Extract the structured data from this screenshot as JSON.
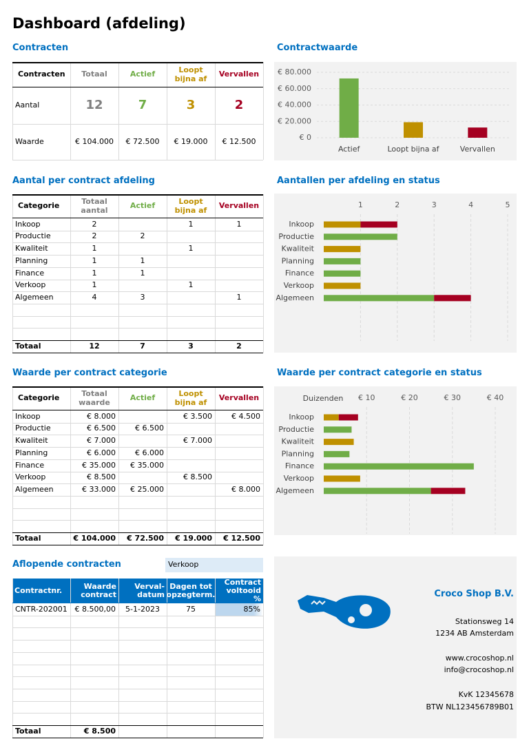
{
  "title": "Dashboard (afdeling)",
  "contracts": {
    "heading": "Contracten",
    "header": [
      "Contracten",
      "Totaal",
      "Actief",
      "Loopt bijna af",
      "Vervallen"
    ],
    "rows": [
      [
        "Aantal",
        "12",
        "7",
        "3",
        "2"
      ],
      [
        "Waarde",
        "€ 104.000",
        "€ 72.500",
        "€ 19.000",
        "€ 12.500"
      ]
    ]
  },
  "count_table": {
    "heading": "Aantal per contract afdeling",
    "header": [
      "Categorie",
      "Totaal aantal",
      "Actief",
      "Loopt bijna af",
      "Vervallen"
    ],
    "rows": [
      [
        "Inkoop",
        "2",
        null,
        "1",
        "1"
      ],
      [
        "Productie",
        "2",
        "2",
        null,
        null
      ],
      [
        "Kwaliteit",
        "1",
        null,
        "1",
        null
      ],
      [
        "Planning",
        "1",
        "1",
        null,
        null
      ],
      [
        "Finance",
        "1",
        "1",
        null,
        null
      ],
      [
        "Verkoop",
        "1",
        null,
        "1",
        null
      ],
      [
        "Algemeen",
        "4",
        "3",
        null,
        "1"
      ]
    ],
    "total": [
      "Totaal",
      "12",
      "7",
      "3",
      "2"
    ]
  },
  "value_table": {
    "heading": "Waarde per contract categorie",
    "header": [
      "Categorie",
      "Totaal waarde",
      "Actief",
      "Loopt bijna af",
      "Vervallen"
    ],
    "rows": [
      [
        "Inkoop",
        "€ 8.000",
        null,
        "€ 3.500",
        "€ 4.500"
      ],
      [
        "Productie",
        "€ 6.500",
        "€ 6.500",
        null,
        null
      ],
      [
        "Kwaliteit",
        "€ 7.000",
        null,
        "€ 7.000",
        null
      ],
      [
        "Planning",
        "€ 6.000",
        "€ 6.000",
        null,
        null
      ],
      [
        "Finance",
        "€ 35.000",
        "€ 35.000",
        null,
        null
      ],
      [
        "Verkoop",
        "€ 8.500",
        null,
        "€ 8.500",
        null
      ],
      [
        "Algemeen",
        "€ 33.000",
        "€ 25.000",
        null,
        "€ 8.000"
      ]
    ],
    "total": [
      "Totaal",
      "€ 104.000",
      "€ 72.500",
      "€ 19.000",
      "€ 12.500"
    ]
  },
  "expiring": {
    "heading": "Aflopende contracten",
    "filter": "Verkoop",
    "header": [
      "Contractnr.",
      "Waarde contract",
      "Verval- datum",
      "Dagen tot opzegterm.",
      "Contract voltooid %"
    ],
    "rows": [
      [
        "CNTR-202001",
        "€ 8.500,00",
        "5-1-2023",
        "75",
        "85%"
      ]
    ],
    "total": [
      "Totaal",
      "€ 8.500"
    ]
  },
  "company": {
    "name": "Croco Shop B.V.",
    "address": [
      "Stationsweg 14",
      "1234 AB Amsterdam"
    ],
    "web": [
      "www.crocoshop.nl",
      "info@crocoshop.nl"
    ],
    "registration": [
      "KvK 12345678",
      "BTW NL123456789B01"
    ]
  },
  "chart_data": [
    {
      "type": "bar",
      "title": "Contractwaarde",
      "categories": [
        "Actief",
        "Loopt bijna af",
        "Vervallen"
      ],
      "values": [
        72500,
        19000,
        12500
      ],
      "colors": [
        "#70ad47",
        "#bf9000",
        "#a50021"
      ],
      "ylim": [
        0,
        80000
      ],
      "yticks": [
        {
          "value": 0,
          "label": "€ 0"
        },
        {
          "value": 20000,
          "label": "€ 20.000"
        },
        {
          "value": 40000,
          "label": "€ 40.000"
        },
        {
          "value": 60000,
          "label": "€ 60.000"
        },
        {
          "value": 80000,
          "label": "€ 80.000"
        }
      ],
      "grid": true
    },
    {
      "type": "hbar",
      "title": "Aantallen per afdeling en status",
      "categories": [
        "Inkoop",
        "Productie",
        "Kwaliteit",
        "Planning",
        "Finance",
        "Verkoop",
        "Algemeen"
      ],
      "series": [
        {
          "color": "#70ad47",
          "values": [
            null,
            2,
            null,
            1,
            1,
            null,
            3
          ]
        },
        {
          "color": "#bf9000",
          "values": [
            1,
            null,
            1,
            null,
            null,
            1,
            null
          ]
        },
        {
          "color": "#a50021",
          "values": [
            1,
            null,
            null,
            null,
            null,
            null,
            1
          ]
        }
      ],
      "xlim": [
        0,
        5
      ],
      "xticks": [
        1,
        2,
        3,
        4,
        5
      ],
      "grid": true
    },
    {
      "type": "hbar",
      "title": "Waarde per contract categorie en status",
      "xlabel": "Duizenden",
      "categories": [
        "Inkoop",
        "Productie",
        "Kwaliteit",
        "Planning",
        "Finance",
        "Verkoop",
        "Algemeen"
      ],
      "series": [
        {
          "color": "#70ad47",
          "values": [
            null,
            6.5,
            null,
            6,
            35,
            null,
            25
          ]
        },
        {
          "color": "#bf9000",
          "values": [
            3.5,
            null,
            7,
            null,
            null,
            8.5,
            null
          ]
        },
        {
          "color": "#a50021",
          "values": [
            4.5,
            null,
            null,
            null,
            null,
            null,
            8
          ]
        }
      ],
      "xlim": [
        0,
        40
      ],
      "xticks": [
        {
          "value": 10,
          "label": "€ 10"
        },
        {
          "value": 20,
          "label": "€ 20"
        },
        {
          "value": 30,
          "label": "€ 30"
        },
        {
          "value": 40,
          "label": "€ 40"
        }
      ],
      "grid": true
    }
  ]
}
